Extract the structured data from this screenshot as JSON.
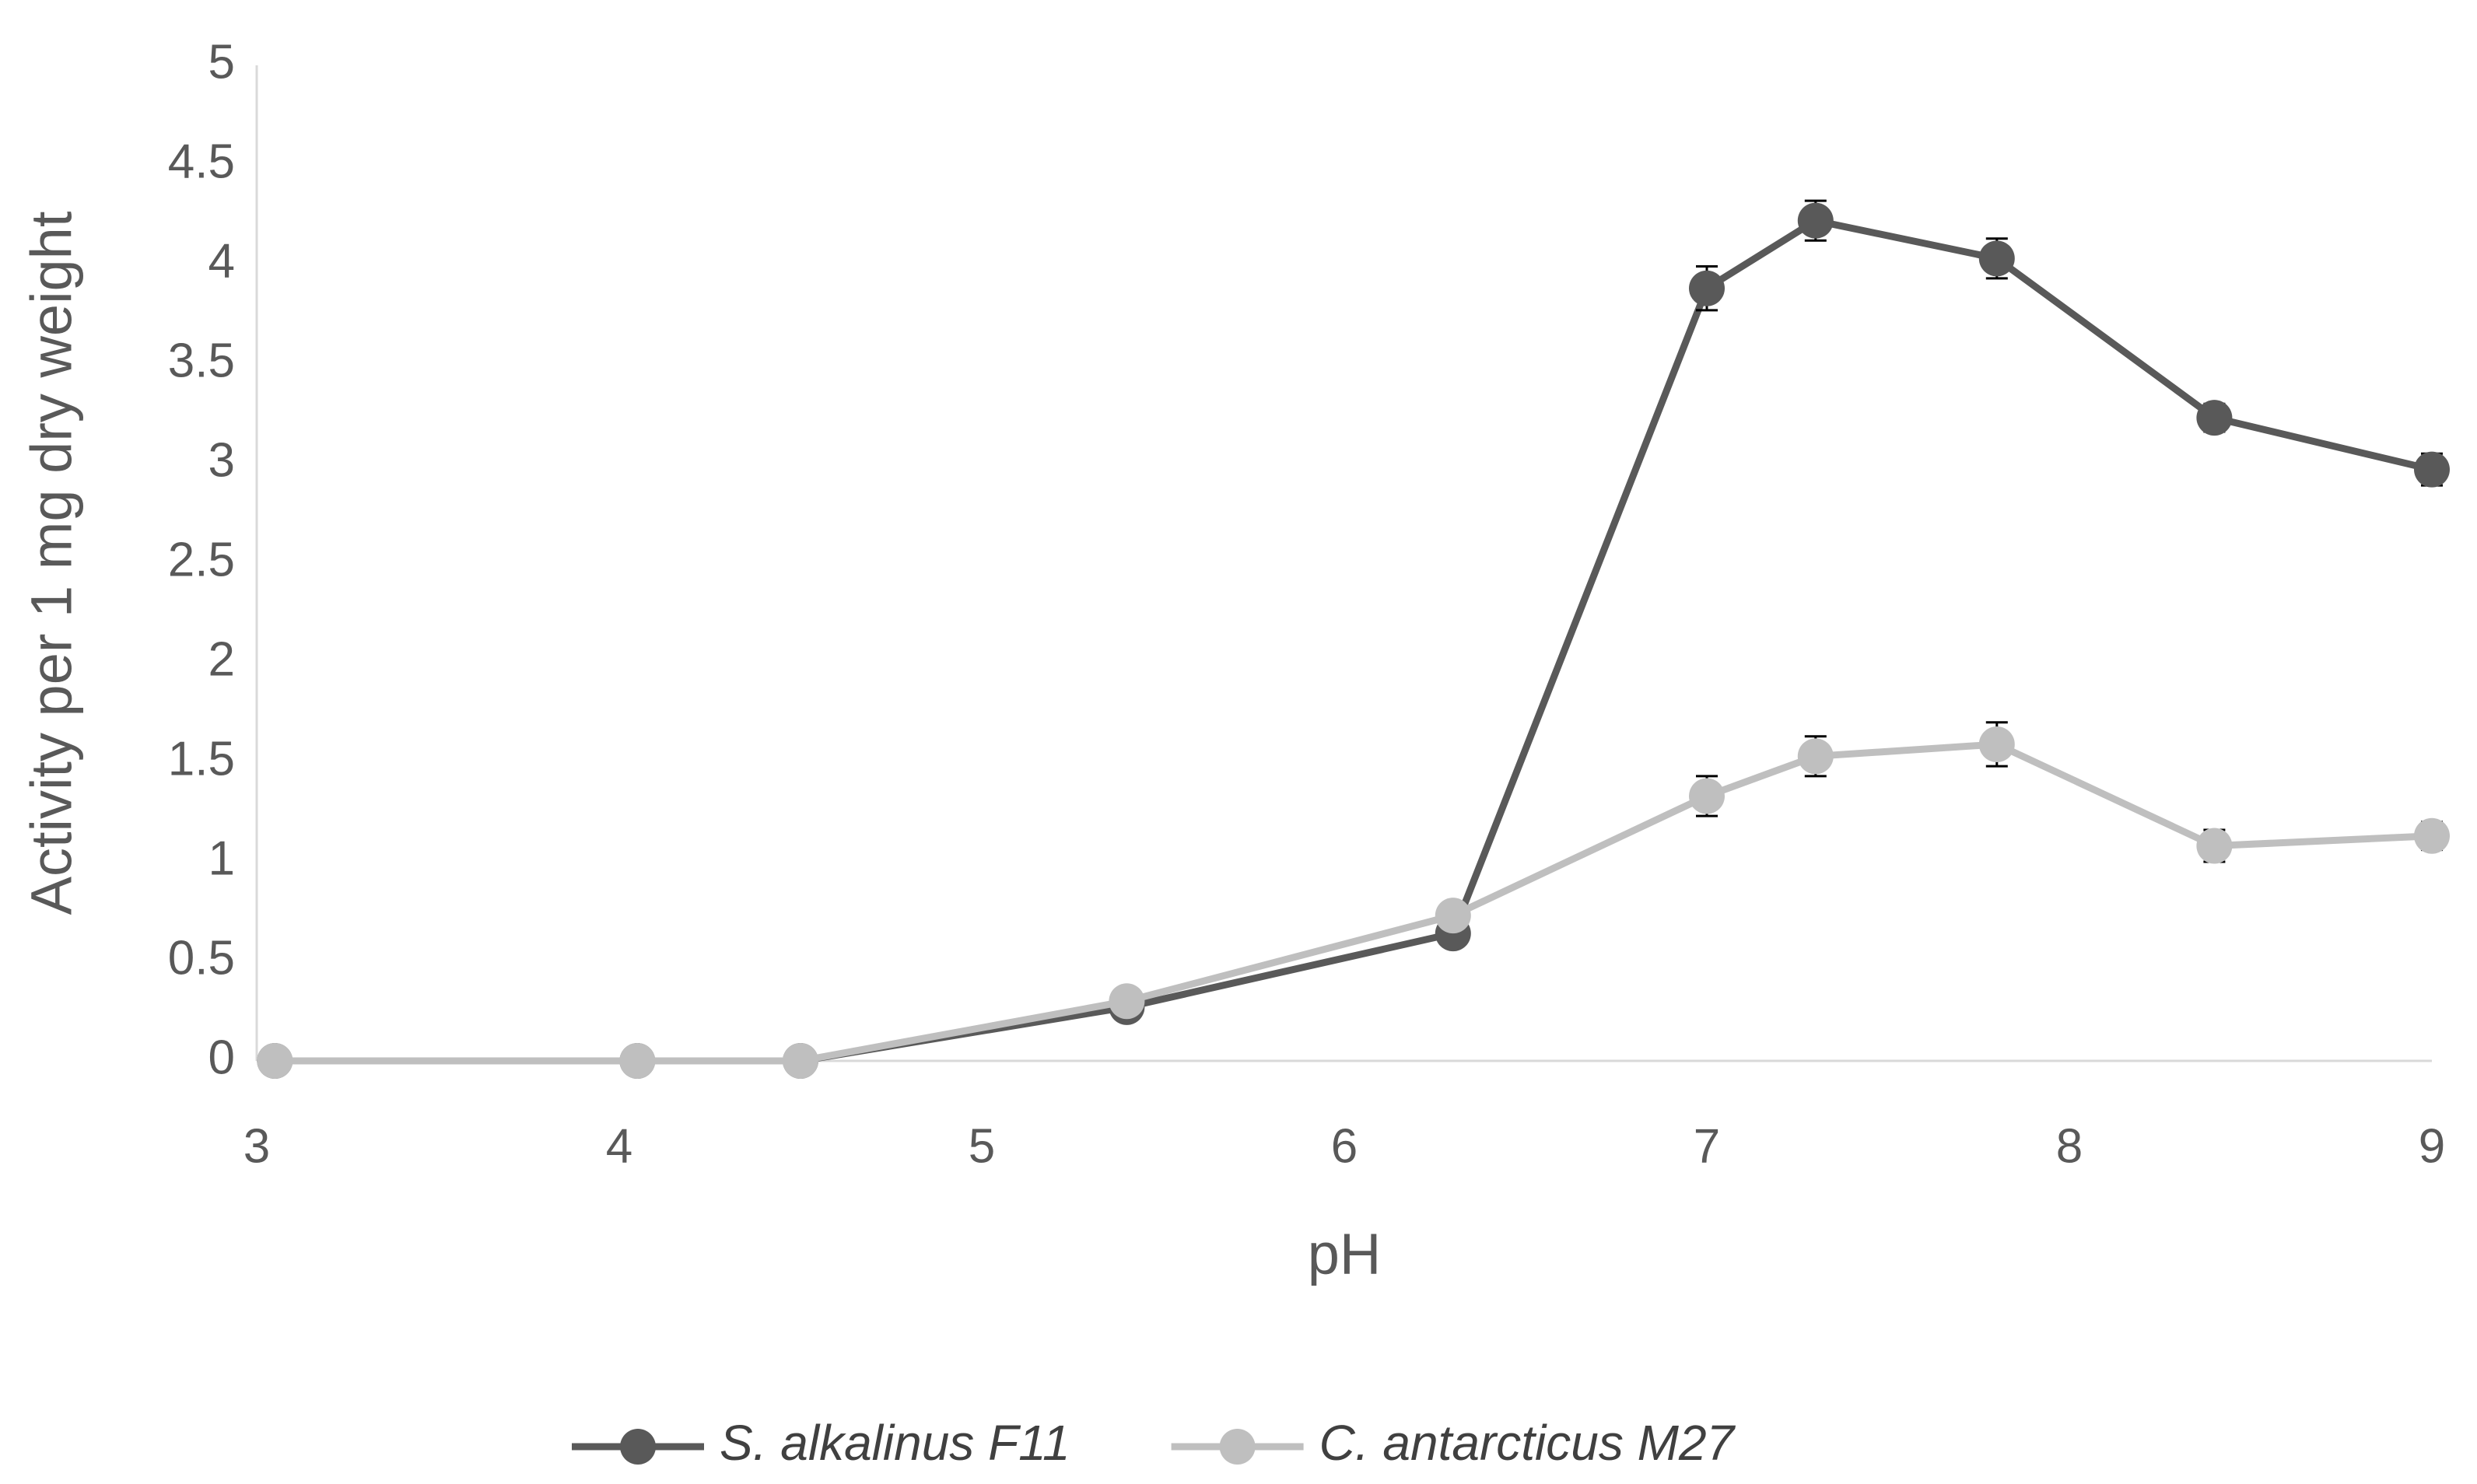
{
  "chart_data": {
    "type": "line",
    "x_label": "pH",
    "y_label": "Activity per 1 mg dry weight",
    "x": [
      3.05,
      4.05,
      4.5,
      5.4,
      6.3,
      7.0,
      7.3,
      7.8,
      8.4,
      9.0
    ],
    "series": [
      {
        "name": "S. alkalinus F11",
        "color": "#595959",
        "values": [
          0,
          0,
          0,
          0.27,
          0.64,
          3.88,
          4.22,
          4.03,
          3.23,
          2.97
        ],
        "errors": [
          0.02,
          0.02,
          0.02,
          0.03,
          0.05,
          0.11,
          0.1,
          0.1,
          0.07,
          0.08
        ]
      },
      {
        "name": "C. antarcticus M27",
        "color": "#bfbfbf",
        "values": [
          0,
          0,
          0,
          0.3,
          0.73,
          1.33,
          1.53,
          1.59,
          1.08,
          1.13
        ],
        "errors": [
          0.02,
          0.02,
          0.02,
          0.03,
          0.04,
          0.1,
          0.1,
          0.11,
          0.08,
          0.07
        ]
      }
    ],
    "xlim": [
      3,
      9
    ],
    "xticks": [
      3,
      4,
      5,
      6,
      7,
      8,
      9
    ],
    "ylim": [
      0,
      5
    ],
    "yticks": [
      0,
      0.5,
      1,
      1.5,
      2,
      2.5,
      3,
      3.5,
      4,
      4.5,
      5
    ],
    "grid": false,
    "legend": "bottom"
  }
}
